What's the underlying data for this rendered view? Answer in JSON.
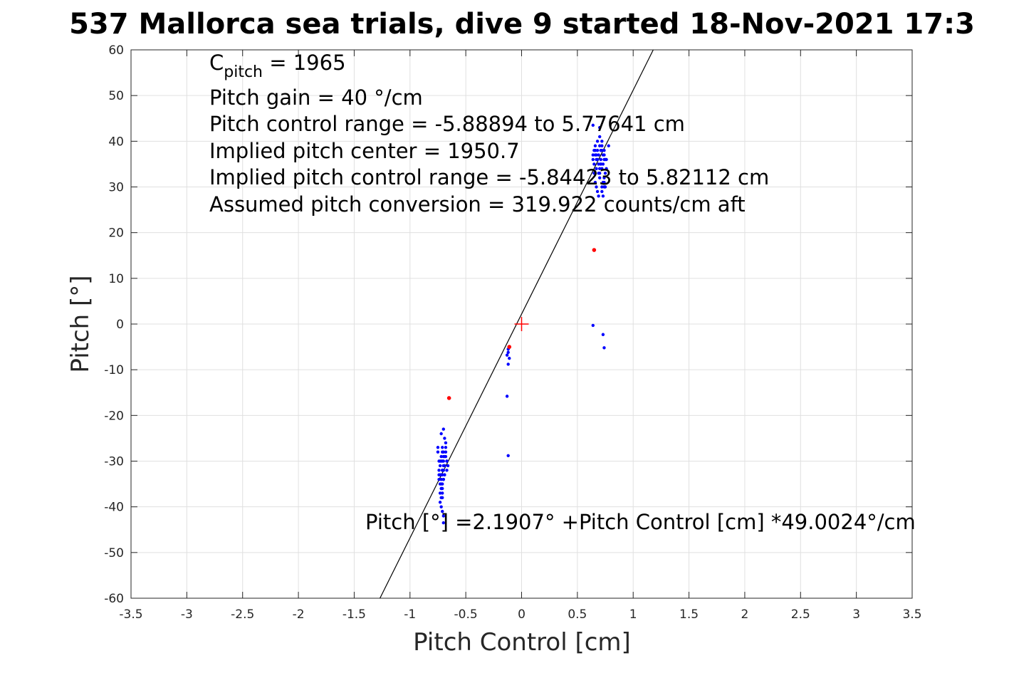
{
  "chart_data": {
    "type": "scatter",
    "title": "537 Mallorca sea trials, dive 9 started 18-Nov-2021 17:3",
    "xlabel": "Pitch Control [cm]",
    "ylabel": "Pitch [°]",
    "xlim": [
      -3.5,
      3.5
    ],
    "ylim": [
      -60,
      60
    ],
    "xticks": [
      -3.5,
      -3,
      -2.5,
      -2,
      -1.5,
      -1,
      -0.5,
      0,
      0.5,
      1,
      1.5,
      2,
      2.5,
      3,
      3.5
    ],
    "xtick_labels": [
      "-3.5",
      "-3",
      "-2.5",
      "-2",
      "-1.5",
      "-1",
      "-0.5",
      "0",
      "0.5",
      "1",
      "1.5",
      "2",
      "2.5",
      "3",
      "3.5"
    ],
    "yticks": [
      -60,
      -50,
      -40,
      -30,
      -20,
      -10,
      0,
      10,
      20,
      30,
      40,
      50,
      60
    ],
    "ytick_labels": [
      "-60",
      "-50",
      "-40",
      "-30",
      "-20",
      "-10",
      "0",
      "10",
      "20",
      "30",
      "40",
      "50",
      "60"
    ],
    "grid": true,
    "colors": {
      "samples": "#0000ff",
      "flagged": "#ff0000",
      "fit_line": "#000000",
      "grid": "#e0e0e0",
      "axes": "#262626"
    },
    "fit_line": {
      "intercept": 2.1907,
      "slope": 49.0024
    },
    "center_marker": {
      "x": 0,
      "y": 0,
      "marker": "plus"
    },
    "series": [
      {
        "marker": "dot",
        "x": [
          -0.75,
          -0.74,
          -0.74,
          -0.73,
          -0.73,
          -0.72,
          -0.72,
          -0.71,
          -0.71,
          -0.7,
          -0.7,
          -0.69,
          -0.69,
          -0.68,
          -0.68,
          -0.67,
          -0.67,
          -0.66,
          -0.75,
          -0.74,
          -0.73,
          -0.72,
          -0.72,
          -0.71,
          -0.71,
          -0.7,
          -0.69,
          -0.69,
          -0.68,
          -0.67,
          -0.74,
          -0.73,
          -0.72,
          -0.71,
          -0.7,
          -0.69,
          -0.68,
          -0.72,
          -0.71,
          -0.7,
          -0.69,
          -0.73,
          -0.72,
          -0.71,
          -0.7,
          -0.72,
          -0.71,
          -0.7,
          -0.73,
          -0.72,
          -0.71,
          -0.72,
          -0.71,
          -0.7,
          -0.71,
          -0.7,
          -0.7,
          -0.12,
          -0.12,
          -0.13,
          -0.11,
          -0.12,
          -0.13,
          -0.12,
          0.64,
          0.65,
          0.65,
          0.66,
          0.66,
          0.67,
          0.67,
          0.68,
          0.68,
          0.69,
          0.69,
          0.7,
          0.7,
          0.71,
          0.71,
          0.72,
          0.72,
          0.73,
          0.73,
          0.74,
          0.74,
          0.75,
          0.76,
          0.78,
          0.64,
          0.65,
          0.66,
          0.67,
          0.68,
          0.69,
          0.7,
          0.71,
          0.72,
          0.73,
          0.74,
          0.75,
          0.66,
          0.68,
          0.7,
          0.72,
          0.74,
          0.76,
          0.67,
          0.69,
          0.71,
          0.73,
          0.75,
          0.7,
          0.72,
          0.74,
          0.7,
          0.72,
          0.74,
          0.64,
          0.73,
          0.74,
          0.64
        ],
        "y": [
          -28,
          -30,
          -33,
          -35,
          -31,
          -29,
          -36,
          -32,
          -30,
          -34,
          -28,
          -31,
          -33,
          -29,
          -26,
          -30,
          -32,
          -31,
          -27,
          -34,
          -37,
          -38,
          -33,
          -35,
          -28,
          -30,
          -29,
          -25,
          -27,
          -30,
          -32,
          -39,
          -40,
          -36,
          -31,
          -33,
          -28,
          -34,
          -37,
          -29,
          -31,
          -30,
          -35,
          -33,
          -32,
          -24,
          -27,
          -23,
          -33,
          -36,
          -38,
          -30,
          -32,
          -34,
          -41,
          -42,
          -43.5,
          -5.5,
          -6.2,
          -6.8,
          -7.5,
          -8.8,
          -15.8,
          -28.8,
          36,
          38,
          35,
          37,
          39,
          36,
          34,
          38,
          40,
          35,
          37,
          39,
          33,
          36,
          38,
          40,
          34,
          37,
          35,
          38,
          32,
          36,
          34,
          39,
          37,
          33,
          31,
          30,
          29,
          28,
          32,
          35,
          29,
          31,
          30,
          33,
          38,
          36,
          34,
          39,
          31,
          36,
          37,
          33,
          35,
          28,
          30,
          41,
          38,
          36,
          43,
          30,
          37,
          43.5,
          -2.3,
          -5.2,
          -0.3
        ],
        "color": "#0000ff"
      },
      {
        "marker": "dot",
        "x": [
          0.65,
          -0.65,
          -0.11
        ],
        "y": [
          16.2,
          -16.2,
          -5.0
        ],
        "color": "#ff0000"
      }
    ]
  },
  "annotations": {
    "lines": [
      {
        "main": "C",
        "sub": "pitch",
        "rest": " = 1965"
      },
      {
        "main": "Pitch gain = 40 °/cm",
        "sub": "",
        "rest": ""
      },
      {
        "main": "Pitch control range = -5.88894 to 5.77641 cm",
        "sub": "",
        "rest": ""
      },
      {
        "main": "Implied pitch center = 1950.7",
        "sub": "",
        "rest": ""
      },
      {
        "main": "Implied pitch control range = -5.84423 to 5.82112 cm",
        "sub": "",
        "rest": ""
      },
      {
        "main": "Assumed pitch conversion = 319.922 counts/cm aft",
        "sub": "",
        "rest": ""
      }
    ],
    "fit_equation": "Pitch [°] =2.1907° +Pitch Control [cm] *49.0024°/cm"
  }
}
